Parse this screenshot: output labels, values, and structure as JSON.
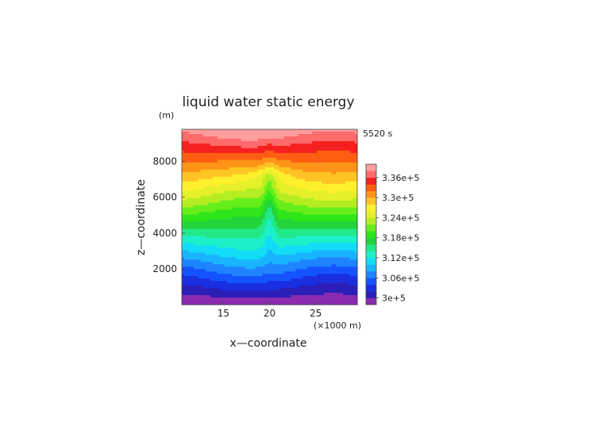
{
  "chart_data": {
    "type": "heatmap",
    "title": "liquid water static energy",
    "y_unit": "(m)",
    "time_label": "5520 s",
    "xlabel": "x—coordinate",
    "x_unit": "(×1000 m)",
    "ylabel": "z—coordinate",
    "x_range": [
      10.5,
      29.5
    ],
    "y_range": [
      0,
      9800
    ],
    "x_ticks": [
      "15",
      "20",
      "25"
    ],
    "x_tick_values": [
      15,
      20,
      25
    ],
    "y_ticks": [
      "2000",
      "4000",
      "6000",
      "8000"
    ],
    "y_tick_values": [
      2000,
      4000,
      6000,
      8000
    ],
    "colorbar": {
      "labels": [
        "3.36e+5",
        "3.3e+5",
        "3.24e+5",
        "3.18e+5",
        "3.12e+5",
        "3.06e+5",
        "3e+5"
      ],
      "label_values": [
        336000,
        330000,
        324000,
        318000,
        312000,
        306000,
        300000
      ],
      "levels": [
        298000,
        300000,
        302000,
        304000,
        306000,
        308000,
        310000,
        312000,
        314000,
        316000,
        318000,
        320000,
        322000,
        324000,
        326000,
        328000,
        330000,
        332000,
        334000,
        336000,
        338000
      ],
      "colors": [
        "#8b2bb0",
        "#2b1fb8",
        "#1a2fe0",
        "#1454ff",
        "#1e84ff",
        "#19b4ff",
        "#12dcf6",
        "#1cf0c8",
        "#22e88a",
        "#22d43a",
        "#2ee61a",
        "#66ee1a",
        "#b4ee22",
        "#e6f02a",
        "#fff02e",
        "#ffc423",
        "#ff9418",
        "#ff5f13",
        "#f52020",
        "#ff6a6a",
        "#ff9c9c"
      ]
    }
  }
}
